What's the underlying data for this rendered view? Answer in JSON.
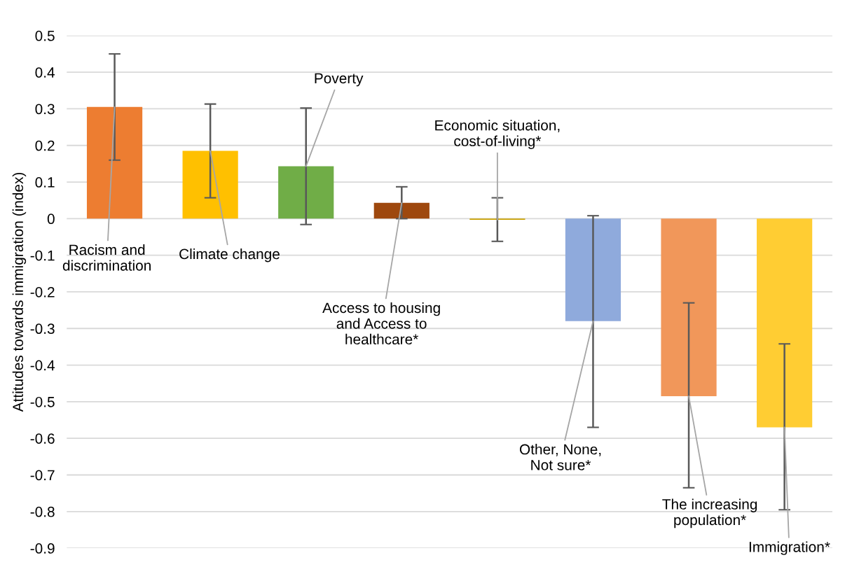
{
  "chart_data": {
    "type": "bar",
    "ylabel": "Attitudes towards immigration (index)",
    "categories": [
      null,
      null,
      null,
      null,
      null,
      null,
      null,
      null
    ],
    "annotations": [
      "Racism and\ndiscrimination",
      "Climate change",
      "Poverty",
      "Access to housing\nand Access to\nhealthcare*",
      "Economic situation,\ncost-of-living*",
      "Other, None,\nNot sure*",
      "The increasing\npopulation*",
      "Immigration*"
    ],
    "values": [
      0.305,
      0.185,
      0.143,
      0.043,
      -0.003,
      -0.28,
      -0.485,
      -0.57
    ],
    "errors": [
      [
        0.16,
        0.45
      ],
      [
        0.057,
        0.313
      ],
      [
        -0.016,
        0.302
      ],
      [
        0.0,
        0.087
      ],
      [
        -0.062,
        0.057
      ],
      [
        -0.57,
        0.008
      ],
      [
        -0.735,
        -0.23
      ],
      [
        -0.795,
        -0.342
      ]
    ],
    "colors": [
      "#ed7d31",
      "#ffc000",
      "#70ad47",
      "#9e480e",
      "#c9a100",
      "#8faadc",
      "#f1975a",
      "#ffcd33"
    ],
    "ylim": [
      -0.9,
      0.5
    ],
    "yticks": [
      0.5,
      0.4,
      0.3,
      0.2,
      0.1,
      0,
      -0.1,
      -0.2,
      -0.3,
      -0.4,
      -0.5,
      -0.6,
      -0.7,
      -0.8,
      -0.9
    ],
    "grid": "y"
  }
}
